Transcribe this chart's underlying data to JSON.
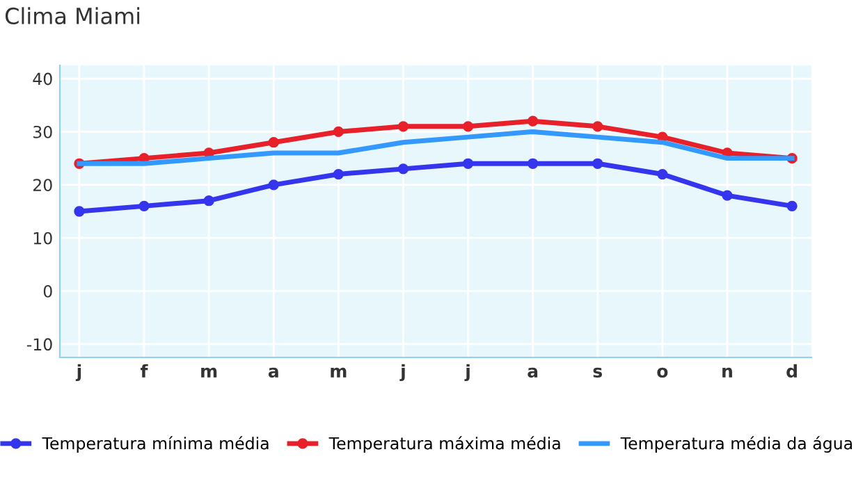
{
  "chart_data": {
    "type": "line",
    "title": "Clima Miami",
    "categories": [
      "j",
      "f",
      "m",
      "a",
      "m",
      "j",
      "j",
      "a",
      "s",
      "o",
      "n",
      "d"
    ],
    "series": [
      {
        "name": "Temperatura mínima média",
        "color": "#3535ee",
        "marker": "circle",
        "values": [
          15,
          16,
          17,
          20,
          22,
          23,
          24,
          24,
          24,
          22,
          18,
          16
        ]
      },
      {
        "name": "Temperatura máxima média",
        "color": "#e8202a",
        "marker": "circle",
        "values": [
          24,
          25,
          26,
          28,
          30,
          31,
          31,
          32,
          31,
          29,
          26,
          25
        ]
      },
      {
        "name": "Temperatura média da água",
        "color": "#3399ff",
        "marker": "none",
        "values": [
          24,
          24,
          25,
          26,
          26,
          28,
          29,
          30,
          29,
          28,
          25,
          25
        ]
      }
    ],
    "ylim": [
      -12.5,
      42.5
    ],
    "yticks": [
      -10,
      0,
      10,
      20,
      30,
      40
    ],
    "grid": true,
    "legend": "bottom",
    "line_style": "solid"
  }
}
